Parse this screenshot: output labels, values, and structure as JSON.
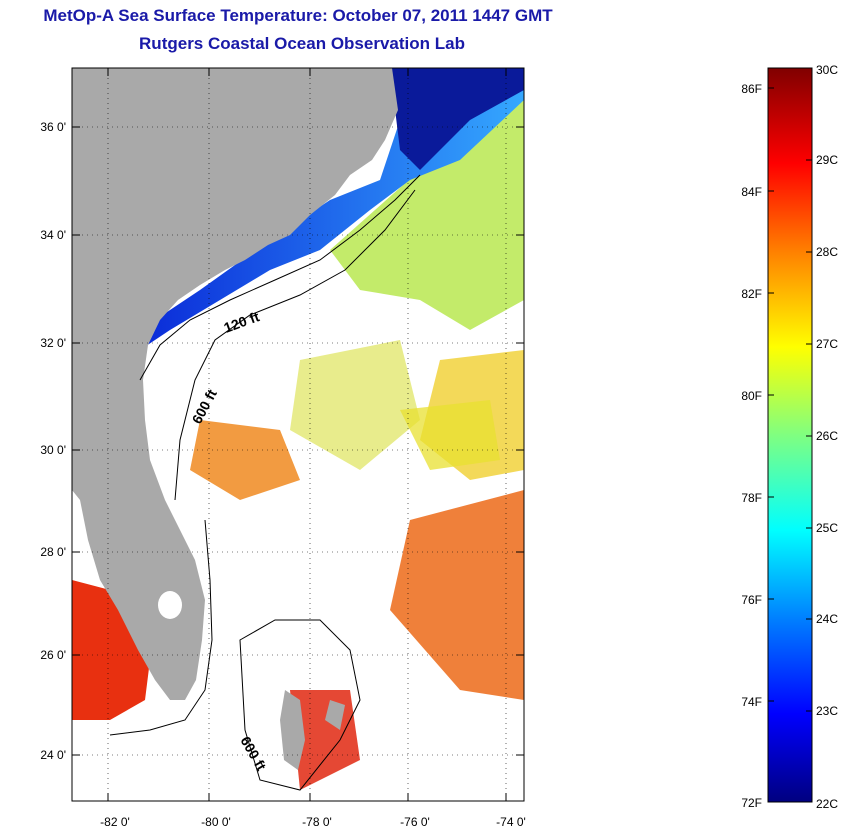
{
  "title": {
    "line1": "MetOp-A Sea Surface Temperature:  October 07, 2011 1447 GMT",
    "line2": "Rutgers Coastal Ocean Observation Lab"
  },
  "map": {
    "x_ticks": [
      "-82 0'",
      "-80 0'",
      "-78 0'",
      "-76 0'",
      "-74 0'"
    ],
    "y_ticks": [
      "36 0'",
      "34 0'",
      "32 0'",
      "30 0'",
      "28 0'",
      "26 0'",
      "24 0'"
    ],
    "contour_labels": [
      "120 ft",
      "600 ft",
      "600 ft"
    ],
    "land_color": "#a9a9a9",
    "no_data_color": "#ffffff"
  },
  "colorbar": {
    "celsius_labels": [
      "30C",
      "29C",
      "28C",
      "27C",
      "26C",
      "25C",
      "24C",
      "23C",
      "22C"
    ],
    "fahrenheit_labels": [
      "86F",
      "84F",
      "82F",
      "80F",
      "78F",
      "76F",
      "74F",
      "72F"
    ],
    "range_c": [
      22,
      30
    ],
    "colormap": [
      "#000080",
      "#0000ff",
      "#0080ff",
      "#00ffff",
      "#80ff80",
      "#ffff00",
      "#ff8000",
      "#ff0000",
      "#800000"
    ]
  }
}
